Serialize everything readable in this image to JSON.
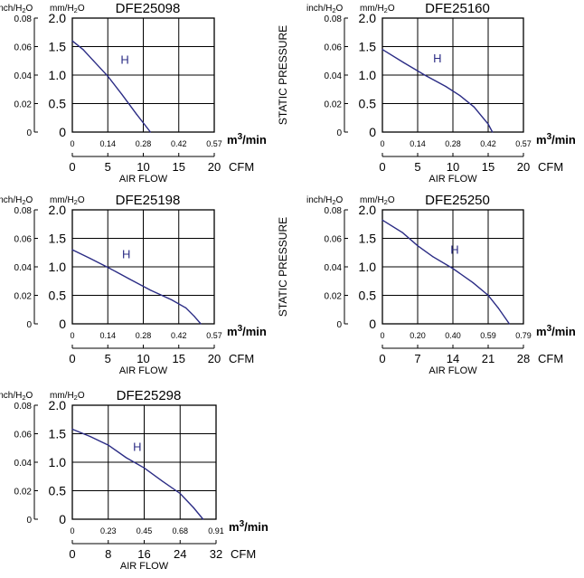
{
  "chart_data": [
    {
      "type": "line",
      "title": "DFE25098",
      "unit_left": "inch/H₂O",
      "unit_right": "mm/H₂O",
      "ylabel": "STATIC PRESSURE",
      "y_inch_ticks": [
        "0.08",
        "0.06",
        "0.04",
        "0.02",
        "0"
      ],
      "y_mm_ticks": [
        "2.0",
        "1.5",
        "1.0",
        "0.5",
        "0"
      ],
      "ylim": [
        0,
        2.0
      ],
      "x_m3_ticks": [
        "0",
        "0.14",
        "0.28",
        "0.42",
        "0.57"
      ],
      "x_m3_unit": "m³/min",
      "x_cfm_ticks": [
        "0",
        "5",
        "10",
        "15",
        "20"
      ],
      "x_cfm_unit": "CFM",
      "xlabel": "AIR FLOW",
      "xlim_cfm": [
        0,
        20
      ],
      "curve_label": "H",
      "curve_label_at": {
        "x": 6.8,
        "y": 1.2
      },
      "series": [
        {
          "name": "H",
          "x_cfm": [
            0,
            1.5,
            3,
            5,
            7,
            9,
            11
          ],
          "y_mm": [
            1.6,
            1.45,
            1.25,
            0.98,
            0.66,
            0.32,
            0
          ]
        }
      ]
    },
    {
      "type": "line",
      "title": "DFE25160",
      "unit_left": "inch/H₂O",
      "unit_right": "mm/H₂O",
      "ylabel": "STATIC PRESSURE",
      "y_inch_ticks": [
        "0.08",
        "0.06",
        "0.04",
        "0.02",
        "0"
      ],
      "y_mm_ticks": [
        "2.0",
        "1.5",
        "1.0",
        "0.5",
        "0"
      ],
      "ylim": [
        0,
        2.0
      ],
      "x_m3_ticks": [
        "0",
        "0.14",
        "0.28",
        "0.42",
        "0.57"
      ],
      "x_m3_unit": "m³/min",
      "x_cfm_ticks": [
        "0",
        "5",
        "10",
        "15",
        "20"
      ],
      "x_cfm_unit": "CFM",
      "xlabel": "AIR FLOW",
      "xlim_cfm": [
        0,
        20
      ],
      "curve_label": "H",
      "curve_label_at": {
        "x": 7.2,
        "y": 1.22
      },
      "series": [
        {
          "name": "H",
          "x_cfm": [
            0,
            3,
            6,
            9,
            11,
            13,
            15,
            15.6
          ],
          "y_mm": [
            1.45,
            1.22,
            1.0,
            0.8,
            0.64,
            0.44,
            0.14,
            0
          ]
        }
      ]
    },
    {
      "type": "line",
      "title": "DFE25198",
      "unit_left": "inch/H₂O",
      "unit_right": "mm/H₂O",
      "ylabel": "STATIC PRESSURE",
      "y_inch_ticks": [
        "0.08",
        "0.06",
        "0.04",
        "0.02",
        "0"
      ],
      "y_mm_ticks": [
        "2.0",
        "1.5",
        "1.0",
        "0.5",
        "0"
      ],
      "ylim": [
        0,
        2.0
      ],
      "x_m3_ticks": [
        "0",
        "0.14",
        "0.28",
        "0.42",
        "0.57"
      ],
      "x_m3_unit": "m³/min",
      "x_cfm_ticks": [
        "0",
        "5",
        "10",
        "15",
        "20"
      ],
      "x_cfm_unit": "CFM",
      "xlabel": "AIR FLOW",
      "xlim_cfm": [
        0,
        20
      ],
      "curve_label": "H",
      "curve_label_at": {
        "x": 7.0,
        "y": 1.15
      },
      "series": [
        {
          "name": "H",
          "x_cfm": [
            0,
            2.5,
            5,
            8,
            11,
            14,
            16,
            17.2,
            18.1
          ],
          "y_mm": [
            1.3,
            1.15,
            0.99,
            0.79,
            0.59,
            0.42,
            0.28,
            0.13,
            0
          ]
        }
      ]
    },
    {
      "type": "line",
      "title": "DFE25250",
      "unit_left": "inch/H₂O",
      "unit_right": "mm/H₂O",
      "ylabel": "STATIC PRESSURE",
      "y_inch_ticks": [
        "0.08",
        "0.06",
        "0.04",
        "0.02",
        "0"
      ],
      "y_mm_ticks": [
        "2.0",
        "1.5",
        "1.0",
        "0.5",
        "0"
      ],
      "ylim": [
        0,
        2.0
      ],
      "x_m3_ticks": [
        "0",
        "0.20",
        "0.40",
        "0.59",
        "0.79"
      ],
      "x_m3_unit": "m³/min",
      "x_cfm_ticks": [
        "0",
        "7",
        "14",
        "21",
        "28"
      ],
      "x_cfm_unit": "CFM",
      "xlabel": "AIR FLOW",
      "xlim_cfm": [
        0,
        28
      ],
      "curve_label": "H",
      "curve_label_at": {
        "x": 13.5,
        "y": 1.23
      },
      "series": [
        {
          "name": "H",
          "x_cfm": [
            0,
            4,
            7,
            10,
            14,
            18,
            21,
            23,
            25.2
          ],
          "y_mm": [
            1.82,
            1.6,
            1.37,
            1.18,
            0.97,
            0.72,
            0.5,
            0.28,
            0
          ]
        }
      ]
    },
    {
      "type": "line",
      "title": "DFE25298",
      "unit_left": "inch/H₂O",
      "unit_right": "mm/H₂O",
      "ylabel": "STATIC PRESSURE",
      "y_inch_ticks": [
        "0.08",
        "0.06",
        "0.04",
        "0.02",
        "0"
      ],
      "y_mm_ticks": [
        "2.0",
        "1.5",
        "1.0",
        "0.5",
        "0"
      ],
      "ylim": [
        0,
        2.0
      ],
      "x_m3_ticks": [
        "0",
        "0.23",
        "0.45",
        "0.68",
        "0.91"
      ],
      "x_m3_unit": "m³/min",
      "x_cfm_ticks": [
        "0",
        "8",
        "16",
        "24",
        "32"
      ],
      "x_cfm_unit": "CFM",
      "xlabel": "AIR FLOW",
      "xlim_cfm": [
        0,
        32
      ],
      "curve_label": "H",
      "curve_label_at": {
        "x": 13.5,
        "y": 1.2
      },
      "series": [
        {
          "name": "H",
          "x_cfm": [
            0,
            4,
            8,
            12,
            16,
            20,
            24,
            27,
            29.1
          ],
          "y_mm": [
            1.58,
            1.45,
            1.3,
            1.08,
            0.9,
            0.67,
            0.45,
            0.2,
            0
          ]
        }
      ]
    }
  ],
  "colors": {
    "curve": "#2b2c85",
    "axis": "#000000"
  }
}
